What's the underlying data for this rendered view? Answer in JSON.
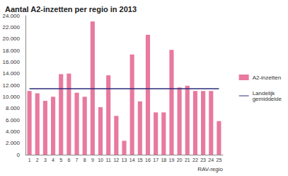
{
  "chart_data": {
    "type": "bar",
    "title": "Aantal A2-inzetten per regio in 2013",
    "x_label": "RAV-regio",
    "categories": [
      "1",
      "2",
      "3",
      "4",
      "5",
      "6",
      "7",
      "8",
      "9",
      "10",
      "11",
      "12",
      "13",
      "14",
      "15",
      "16",
      "17",
      "18",
      "19",
      "20",
      "21",
      "22",
      "23",
      "24",
      "25"
    ],
    "series": [
      {
        "name": "A2-inzetten",
        "type": "bar",
        "color": "#e8799f",
        "values": [
          11000,
          10600,
          9300,
          10000,
          13900,
          14000,
          10700,
          10000,
          23000,
          8200,
          13700,
          6700,
          2400,
          17300,
          9200,
          20700,
          7300,
          7300,
          18100,
          11600,
          11900,
          11000,
          11000,
          11000,
          5800
        ]
      },
      {
        "name": "Landelijk gemiddelde",
        "type": "line",
        "color": "#2e2c7e",
        "values": [
          11400,
          11400,
          11400,
          11400,
          11400,
          11400,
          11400,
          11400,
          11400,
          11400,
          11400,
          11400,
          11400,
          11400,
          11400,
          11400,
          11400,
          11400,
          11400,
          11400,
          11400,
          11400,
          11400,
          11400,
          11400
        ]
      }
    ],
    "ylim": [
      0,
      24000
    ],
    "yticks": [
      0,
      {
        "value": 2000,
        "label": "2.000"
      },
      {
        "value": 4000,
        "label": "4.000"
      },
      {
        "value": 6000,
        "label": "6.000"
      },
      {
        "value": 8000,
        "label": "8.000"
      },
      {
        "value": 10000,
        "label": "10.000"
      },
      {
        "value": 12000,
        "label": "12.000"
      },
      {
        "value": 14000,
        "label": "14.000"
      },
      {
        "value": 16000,
        "label": "16.000"
      },
      {
        "value": 18000,
        "label": "18.000"
      },
      {
        "value": 20000,
        "label": "20.000"
      },
      {
        "value": 22000,
        "label": "22.000"
      },
      {
        "value": 24000,
        "label": "24.000"
      }
    ],
    "grid": false,
    "legend": "right"
  }
}
